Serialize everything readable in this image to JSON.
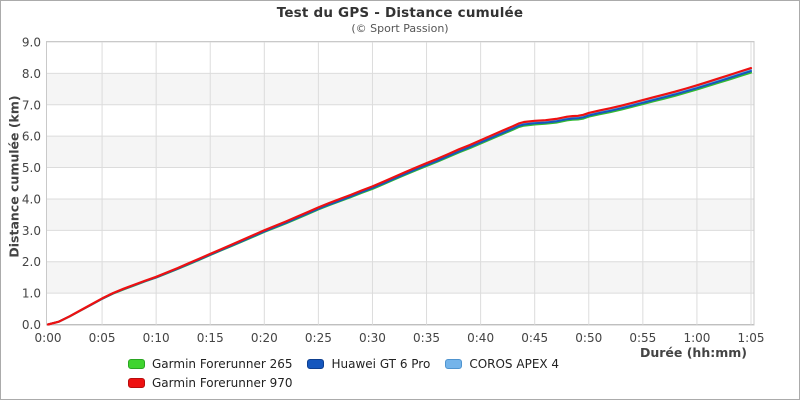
{
  "header": {
    "title": "Test du GPS - Distance cumulée",
    "subtitle": "(© Sport Passion)"
  },
  "chart_data": {
    "type": "line",
    "title": "Test du GPS - Distance cumulée",
    "subtitle": "(© Sport Passion)",
    "xlabel": "Durée (hh:mm)",
    "ylabel": "Distance cumulée (km)",
    "xlim": [
      0,
      65
    ],
    "ylim": [
      0,
      9
    ],
    "x_unit": "minutes (hh:mm)",
    "grid": true,
    "legend_position": "bottom",
    "band_color": "#f5f5f5",
    "gridline_color": "#dcdcdc",
    "border_color": "#c9c9c9",
    "axis_line_color": "#b5b5b5",
    "band_rows": [
      [
        1,
        2
      ],
      [
        3,
        4
      ],
      [
        5,
        6
      ],
      [
        7,
        8
      ]
    ],
    "x_ticks": [
      {
        "value": 0,
        "label": "0:00"
      },
      {
        "value": 5,
        "label": "0:05"
      },
      {
        "value": 10,
        "label": "0:10"
      },
      {
        "value": 15,
        "label": "0:15"
      },
      {
        "value": 20,
        "label": "0:20"
      },
      {
        "value": 25,
        "label": "0:25"
      },
      {
        "value": 30,
        "label": "0:30"
      },
      {
        "value": 35,
        "label": "0:35"
      },
      {
        "value": 40,
        "label": "0:40"
      },
      {
        "value": 45,
        "label": "0:45"
      },
      {
        "value": 50,
        "label": "0:50"
      },
      {
        "value": 55,
        "label": "0:55"
      },
      {
        "value": 60,
        "label": "1:00"
      },
      {
        "value": 65,
        "label": "1:05"
      }
    ],
    "y_ticks": [
      {
        "value": 0,
        "label": "0.0"
      },
      {
        "value": 1,
        "label": "1.0"
      },
      {
        "value": 2,
        "label": "2.0"
      },
      {
        "value": 3,
        "label": "3.0"
      },
      {
        "value": 4,
        "label": "4.0"
      },
      {
        "value": 5,
        "label": "5.0"
      },
      {
        "value": 6,
        "label": "6.0"
      },
      {
        "value": 7,
        "label": "7.0"
      },
      {
        "value": 8,
        "label": "8.0"
      },
      {
        "value": 9,
        "label": "9.0"
      }
    ],
    "x": [
      0,
      1,
      2,
      3,
      4,
      5,
      6,
      7,
      8,
      9,
      10,
      11,
      12,
      13,
      14,
      15,
      16,
      17,
      18,
      19,
      20,
      21,
      22,
      23,
      24,
      25,
      26,
      27,
      28,
      29,
      30,
      31,
      32,
      33,
      34,
      35,
      36,
      37,
      38,
      39,
      40,
      41,
      42,
      43,
      43.5,
      44,
      45,
      46,
      47,
      48,
      48.5,
      49,
      49.5,
      50,
      51,
      52,
      53,
      54,
      55,
      56,
      57,
      58,
      59,
      60,
      61,
      62,
      63,
      64,
      65
    ],
    "base_values": [
      0.0,
      0.09,
      0.26,
      0.45,
      0.64,
      0.83,
      1.0,
      1.14,
      1.27,
      1.4,
      1.52,
      1.66,
      1.8,
      1.95,
      2.1,
      2.25,
      2.4,
      2.55,
      2.7,
      2.85,
      3.0,
      3.14,
      3.28,
      3.43,
      3.58,
      3.73,
      3.87,
      4.0,
      4.13,
      4.27,
      4.4,
      4.55,
      4.7,
      4.85,
      5.0,
      5.14,
      5.28,
      5.43,
      5.58,
      5.72,
      5.87,
      6.02,
      6.17,
      6.32,
      6.4,
      6.45,
      6.49,
      6.51,
      6.55,
      6.62,
      6.64,
      6.65,
      6.68,
      6.74,
      6.82,
      6.89,
      6.97,
      7.06,
      7.15,
      7.24,
      7.33,
      7.42,
      7.52,
      7.62,
      7.73,
      7.84,
      7.95,
      8.06,
      8.17
    ],
    "series_note": "values of each series = base_values * scale (lines almost perfectly overlap; Garmin 970 drawn on top, max ~8.17 km at 1:05, plateau ~6.45-6.68 km between 0:44 and 0:50)",
    "series": [
      {
        "name": "COROS APEX 4",
        "color": "#74b4ea",
        "scale": 0.993,
        "width": 2.0
      },
      {
        "name": "Garmin Forerunner 265",
        "color": "#33bb33",
        "scale": 0.982,
        "width": 2.0
      },
      {
        "name": "Huawei GT 6 Pro",
        "color": "#1557be",
        "scale": 0.988,
        "width": 2.0
      },
      {
        "name": "Garmin Forerunner 970",
        "color": "#ee1111",
        "scale": 1.0,
        "width": 2.2
      }
    ]
  },
  "legend": {
    "items": [
      {
        "label": "Garmin Forerunner 265",
        "color": "#3fd42f",
        "border": "#2aa522",
        "row": 1
      },
      {
        "label": "Huawei GT 6 Pro",
        "color": "#1557be",
        "border": "#0e3f8f",
        "row": 1
      },
      {
        "label": "COROS APEX 4",
        "color": "#74b4ea",
        "border": "#4f94cf",
        "row": 1
      },
      {
        "label": "Garmin Forerunner 970",
        "color": "#ee1111",
        "border": "#b80d0d",
        "row": 2
      }
    ]
  }
}
